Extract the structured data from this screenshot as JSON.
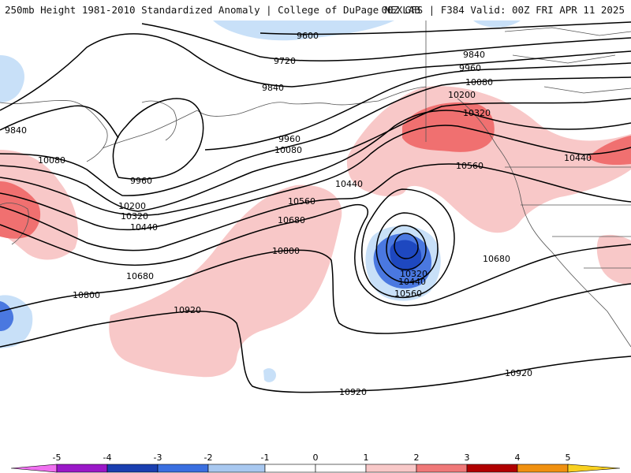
{
  "header": {
    "title": "250mb Height 1981-2010 Standardized Anomaly | College of DuPage NEXLAB",
    "run_info": "00Z GFS | F384 Valid: 00Z FRI APR 11 2025"
  },
  "map": {
    "contour_labels": {
      "c9600": "9600",
      "c9720": "9720",
      "c9840a": "9840",
      "c9840b": "9840",
      "c9840c": "9840",
      "c9960a": "9960",
      "c9960b": "9960",
      "c9960c": "9960",
      "c10080a": "10080",
      "c10080b": "10080",
      "c10080c": "10080",
      "c10200a": "10200",
      "c10200b": "10200",
      "c10320a": "10320",
      "c10320b": "10320",
      "c10320c": "10320",
      "c10440a": "10440",
      "c10440b": "10440",
      "c10440c": "10440",
      "c10440d": "10440",
      "c10560a": "10560",
      "c10560b": "10560",
      "c10560c": "10560",
      "c10680a": "10680",
      "c10680b": "10680",
      "c10680c": "10680",
      "c10800a": "10800",
      "c10800b": "10800",
      "c10920a": "10920",
      "c10920b": "10920",
      "c10920c": "10920"
    }
  },
  "colorbar": {
    "ticks": [
      "-5",
      "-4",
      "-3",
      "-2",
      "-1",
      "0",
      "1",
      "2",
      "3",
      "4",
      "5"
    ],
    "colors": [
      "#f070f0",
      "#9a18c8",
      "#1a3fb0",
      "#3a6fe0",
      "#a8c8f0",
      "#ffffff",
      "#f8c8c8",
      "#f07878",
      "#e03030",
      "#b00000",
      "#f09010",
      "#f8d020"
    ]
  }
}
